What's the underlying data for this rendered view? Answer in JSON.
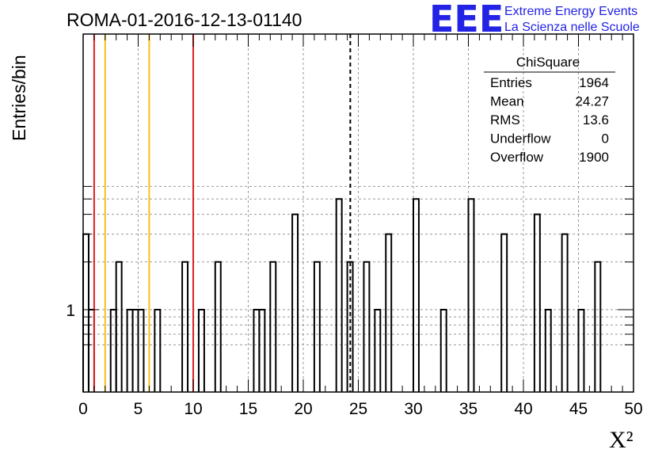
{
  "chart_data": {
    "type": "histogram",
    "title": "ROMA-01-2016-12-13-01140",
    "xlabel": "X²",
    "ylabel": "Entries/bin",
    "xlim": [
      0,
      50
    ],
    "log_y": true,
    "bin_width": 0.5,
    "grid": true,
    "x_ticks": [
      "0",
      "5",
      "10",
      "15",
      "20",
      "25",
      "30",
      "35",
      "40",
      "45",
      "50"
    ],
    "y_tick_labels": [
      "1"
    ],
    "bins": [
      {
        "x": 0.0,
        "y": 3
      },
      {
        "x": 0.5,
        "y": 1
      },
      {
        "x": 2.5,
        "y": 1
      },
      {
        "x": 3.0,
        "y": 2
      },
      {
        "x": 4.0,
        "y": 1
      },
      {
        "x": 4.5,
        "y": 1
      },
      {
        "x": 5.0,
        "y": 1
      },
      {
        "x": 6.5,
        "y": 1
      },
      {
        "x": 9.0,
        "y": 2
      },
      {
        "x": 10.5,
        "y": 1
      },
      {
        "x": 12.0,
        "y": 2
      },
      {
        "x": 15.5,
        "y": 1
      },
      {
        "x": 16.0,
        "y": 1
      },
      {
        "x": 17.0,
        "y": 2
      },
      {
        "x": 19.0,
        "y": 4
      },
      {
        "x": 21.0,
        "y": 2
      },
      {
        "x": 23.0,
        "y": 5
      },
      {
        "x": 24.0,
        "y": 2
      },
      {
        "x": 25.5,
        "y": 2
      },
      {
        "x": 26.5,
        "y": 1
      },
      {
        "x": 27.5,
        "y": 3
      },
      {
        "x": 30.0,
        "y": 5
      },
      {
        "x": 32.5,
        "y": 1
      },
      {
        "x": 35.0,
        "y": 5
      },
      {
        "x": 38.0,
        "y": 3
      },
      {
        "x": 41.0,
        "y": 4
      },
      {
        "x": 42.0,
        "y": 1
      },
      {
        "x": 43.5,
        "y": 3
      },
      {
        "x": 45.0,
        "y": 1
      },
      {
        "x": 46.5,
        "y": 2
      }
    ],
    "vertical_markers": [
      {
        "x": 1.0,
        "color": "#dd2222",
        "style": "solid"
      },
      {
        "x": 2.0,
        "color": "#f2c21b",
        "style": "solid"
      },
      {
        "x": 6.0,
        "color": "#f2c21b",
        "style": "solid"
      },
      {
        "x": 10.0,
        "color": "#dd2222",
        "style": "solid"
      },
      {
        "x": 24.27,
        "color": "#000000",
        "style": "dashed"
      }
    ],
    "stats_box": {
      "name": "ChiSquare",
      "rows": [
        {
          "label": "Entries",
          "value": "1964"
        },
        {
          "label": "Mean",
          "value": "24.27"
        },
        {
          "label": "RMS",
          "value": "13.6"
        },
        {
          "label": "Underflow",
          "value": "0"
        },
        {
          "label": "Overflow",
          "value": "1900"
        }
      ]
    }
  },
  "logo": {
    "mark": "EEE",
    "line1": "Extreme Energy Events",
    "line2": "La Scienza nelle Scuole",
    "color": "#2323e6"
  }
}
